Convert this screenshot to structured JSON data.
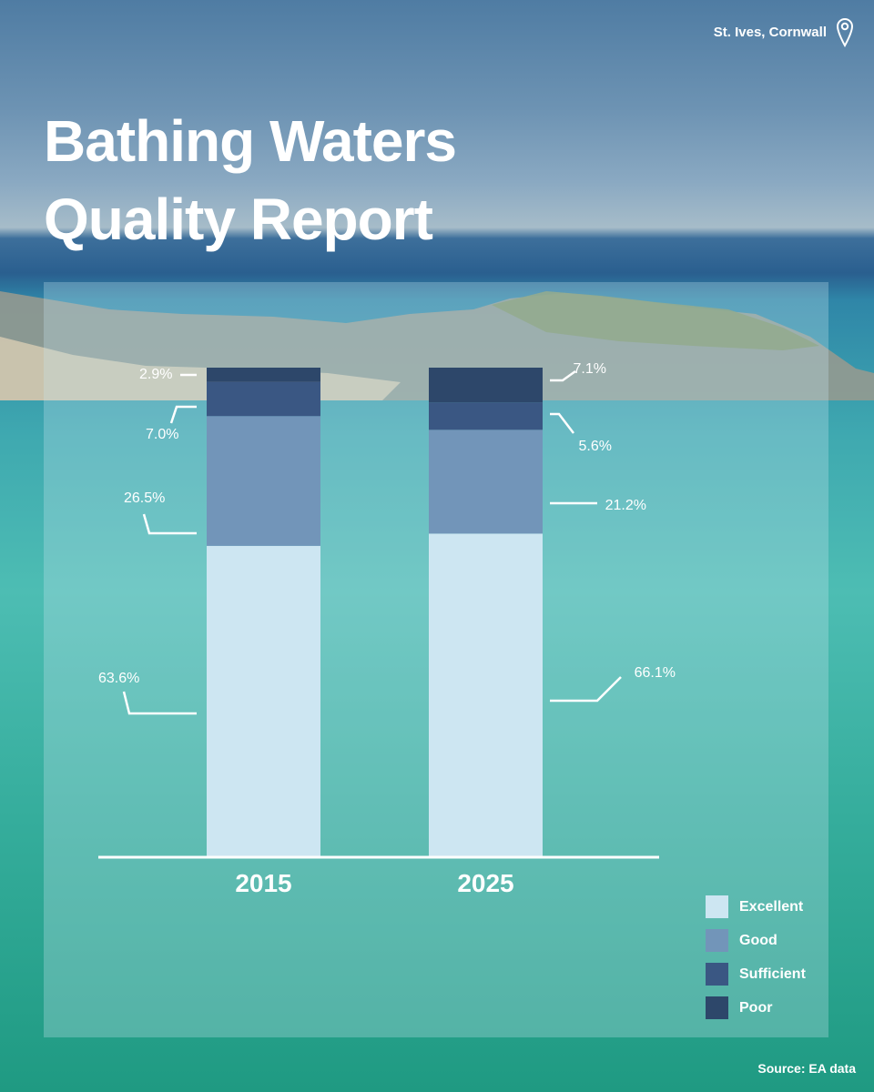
{
  "location": {
    "text": "St. Ives, Cornwall",
    "icon": "map-pin-icon"
  },
  "title_lines": [
    "Bathing Waters",
    "Quality Report"
  ],
  "source": "Source: EA data",
  "chart_data": {
    "type": "bar",
    "stacked": true,
    "categories": [
      "2015",
      "2025"
    ],
    "series": [
      {
        "name": "Excellent",
        "values": [
          63.6,
          66.1
        ],
        "labels": [
          "63.6%",
          "66.1%"
        ],
        "color": "#cde6f2"
      },
      {
        "name": "Good",
        "values": [
          26.5,
          21.2
        ],
        "labels": [
          "26.5%",
          "21.2%"
        ],
        "color": "#7295b9"
      },
      {
        "name": "Sufficient",
        "values": [
          7.0,
          5.6
        ],
        "labels": [
          "7.0%",
          "5.6%"
        ],
        "color": "#3a5783"
      },
      {
        "name": "Poor",
        "values": [
          2.9,
          7.1
        ],
        "labels": [
          "2.9%",
          "7.1%"
        ],
        "color": "#2d476a"
      }
    ],
    "ylim": [
      0,
      100
    ],
    "legend": "bottom-right"
  }
}
